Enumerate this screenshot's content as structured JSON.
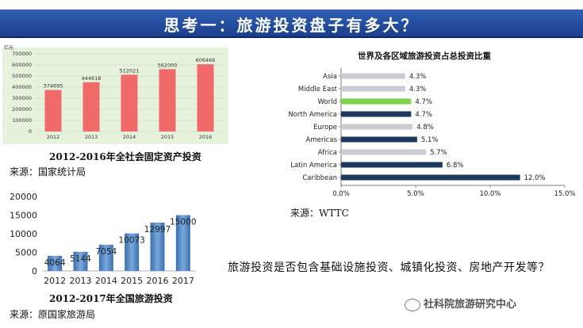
{
  "header": {
    "title": "思考一：旅游投资盘子有多大？"
  },
  "chart_data": [
    {
      "type": "bar",
      "unit": "亿元",
      "categories": [
        "2012",
        "2013",
        "2014",
        "2015",
        "2016"
      ],
      "values": [
        374695,
        444618,
        512021,
        562000,
        606466
      ],
      "value_labels": [
        "374695",
        "444618",
        "512021",
        "562000",
        "606466"
      ],
      "ylim": [
        0,
        700000
      ],
      "yticks": [
        "0",
        "100000",
        "200000",
        "300000",
        "400000",
        "500000",
        "600000",
        "700000"
      ],
      "ytick_values": [
        0,
        100000,
        200000,
        300000,
        400000,
        500000,
        600000,
        700000
      ],
      "color": "#f06a6a",
      "background": "#e6f2dc",
      "title": "2012-2016年全社会固定资产投资",
      "source": "来源：国家统计局"
    },
    {
      "type": "bar",
      "categories": [
        "2012",
        "2013",
        "2014",
        "2015",
        "2016",
        "2017"
      ],
      "values": [
        4064,
        5144,
        7054,
        10073,
        12997,
        15000
      ],
      "value_labels": [
        "4064",
        "5144",
        "7054",
        "10073",
        "12997",
        "15000"
      ],
      "ylim": [
        0,
        20000
      ],
      "yticks": [
        "0",
        "5000",
        "10000",
        "15000",
        "20000"
      ],
      "ytick_values": [
        0,
        5000,
        10000,
        15000,
        20000
      ],
      "color": "#4f86c6",
      "title": "2012-2017年全国旅游投资",
      "source": "来源：原国家旅游局"
    },
    {
      "type": "bar",
      "orientation": "horizontal",
      "title": "世界及各区域旅游投资占总投资比重",
      "categories": [
        "Asia",
        "Middle East",
        "World",
        "North America",
        "Europe",
        "Americas",
        "Africa",
        "Latin America",
        "Caribbean"
      ],
      "values": [
        4.3,
        4.3,
        4.7,
        4.7,
        4.8,
        5.1,
        5.7,
        6.8,
        12.0
      ],
      "value_labels": [
        "4.3%",
        "4.3%",
        "4.7%",
        "4.7%",
        "4.8%",
        "5.1%",
        "5.7%",
        "6.8%",
        "12.0%"
      ],
      "colors": [
        "#c9cdd3",
        "#c9cdd3",
        "#7ed348",
        "#1c3a5e",
        "#c9cdd3",
        "#1c3a5e",
        "#c9cdd3",
        "#1c3a5e",
        "#1c3a5e"
      ],
      "xlim": [
        0,
        15
      ],
      "xticks": [
        "0.0%",
        "5.0%",
        "10.0%",
        "15.0%"
      ],
      "xtick_values": [
        0,
        5,
        10,
        15
      ],
      "source": "来源：WTTC"
    }
  ],
  "question": "旅游投资是否包含基础设施投资、城镇化投资、房地产开发等？",
  "watermark": "社科院旅游研究中心"
}
